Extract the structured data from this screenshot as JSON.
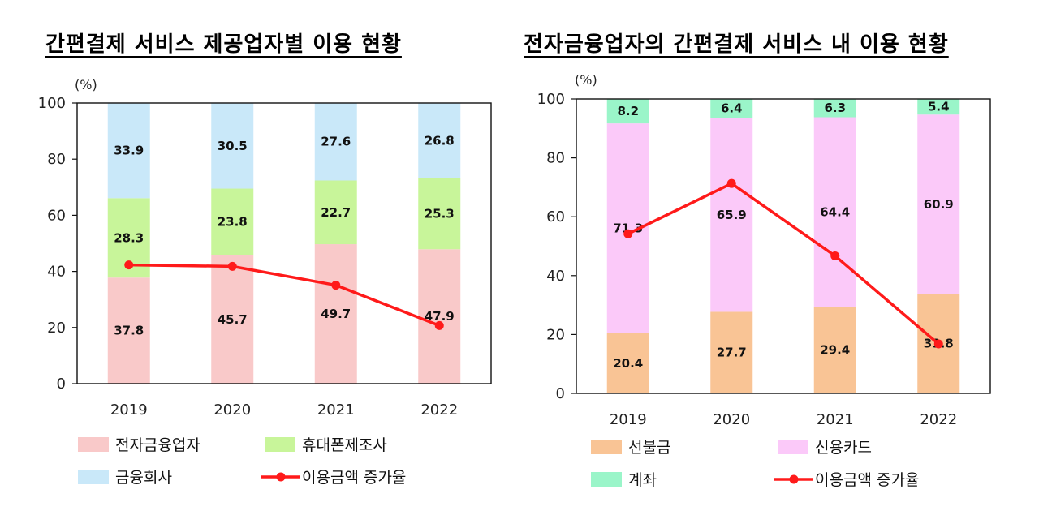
{
  "charts": {
    "left_title": "간편결제 서비스 제공업자별 이용 현황",
    "right_title": "전자금융업자의 간편결제 서비스 내 이용 현황"
  },
  "chart_data": [
    {
      "type": "bar",
      "stacked": true,
      "title": "간편결제 서비스 제공업자별 이용 현황",
      "y_unit_label": "(%)",
      "ylim": [
        0,
        100
      ],
      "yticks": [
        0,
        20,
        40,
        60,
        80,
        100
      ],
      "categories": [
        "2019",
        "2020",
        "2021",
        "2022"
      ],
      "series": [
        {
          "name": "전자금융업자",
          "color": "#f9c9c9",
          "values": [
            37.8,
            45.7,
            49.7,
            47.9
          ]
        },
        {
          "name": "휴대폰제조사",
          "color": "#c8f59a",
          "values": [
            28.3,
            23.8,
            22.7,
            25.3
          ]
        },
        {
          "name": "금융회사",
          "color": "#c9e8f9",
          "values": [
            33.9,
            30.5,
            27.6,
            26.8
          ]
        }
      ],
      "line": {
        "name": "이용금액 증가율",
        "color": "#ff1a1a",
        "values": [
          42.3,
          41.8,
          35.1,
          20.7
        ]
      },
      "legend_position": "bottom",
      "grid": false
    },
    {
      "type": "bar",
      "stacked": true,
      "title": "전자금융업자의 간편결제 서비스 내 이용 현황",
      "y_unit_label": "(%)",
      "ylim": [
        0,
        100
      ],
      "yticks": [
        0,
        20,
        40,
        60,
        80,
        100
      ],
      "categories": [
        "2019",
        "2020",
        "2021",
        "2022"
      ],
      "series": [
        {
          "name": "선불금",
          "color": "#f9c495",
          "values": [
            20.4,
            27.7,
            29.4,
            33.8
          ]
        },
        {
          "name": "신용카드",
          "color": "#fbc9f9",
          "values": [
            71.3,
            65.9,
            64.4,
            60.9
          ]
        },
        {
          "name": "계좌",
          "color": "#9af5c9",
          "values": [
            8.2,
            6.4,
            6.3,
            5.4
          ]
        }
      ],
      "line": {
        "name": "이용금액 증가율",
        "color": "#ff1a1a",
        "values": [
          54.2,
          71.3,
          46.7,
          16.8
        ]
      },
      "legend_position": "bottom",
      "grid": false
    }
  ]
}
